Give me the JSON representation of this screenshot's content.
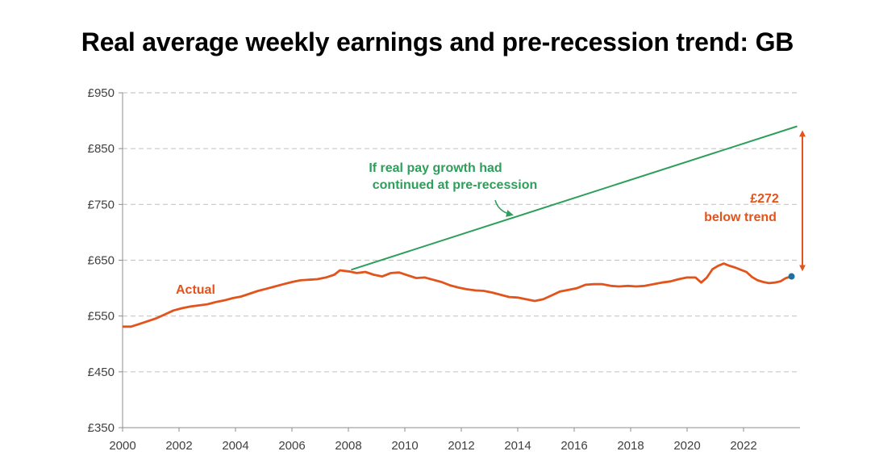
{
  "chart_data": {
    "type": "line",
    "title": "Real average weekly earnings and pre-recession trend: GB",
    "xlim": [
      2000,
      2024
    ],
    "ylim": [
      350,
      950
    ],
    "x_ticks": [
      2000,
      2002,
      2004,
      2006,
      2008,
      2010,
      2012,
      2014,
      2016,
      2018,
      2020,
      2022
    ],
    "x_tick_labels": [
      "2000",
      "2002",
      "2004",
      "2006",
      "2008",
      "2010",
      "2012",
      "2014",
      "2016",
      "2018",
      "2020",
      "2022"
    ],
    "y_ticks": [
      350,
      450,
      550,
      650,
      750,
      850,
      950
    ],
    "y_tick_labels": [
      "£350",
      "£450",
      "£550",
      "£650",
      "£750",
      "£850",
      "£950"
    ],
    "grid": true,
    "series": [
      {
        "name": "Actual",
        "color": "#E2541B",
        "points": [
          [
            2000.0,
            531
          ],
          [
            2000.3,
            531
          ],
          [
            2000.6,
            536
          ],
          [
            2000.9,
            541
          ],
          [
            2001.2,
            546
          ],
          [
            2001.5,
            553
          ],
          [
            2001.8,
            560
          ],
          [
            2002.1,
            564
          ],
          [
            2002.4,
            567
          ],
          [
            2002.7,
            569
          ],
          [
            2003.0,
            571
          ],
          [
            2003.3,
            575
          ],
          [
            2003.6,
            578
          ],
          [
            2003.9,
            582
          ],
          [
            2004.2,
            585
          ],
          [
            2004.5,
            590
          ],
          [
            2004.8,
            595
          ],
          [
            2005.1,
            599
          ],
          [
            2005.4,
            603
          ],
          [
            2005.7,
            607
          ],
          [
            2006.0,
            611
          ],
          [
            2006.3,
            614
          ],
          [
            2006.6,
            615
          ],
          [
            2006.9,
            616
          ],
          [
            2007.2,
            619
          ],
          [
            2007.5,
            624
          ],
          [
            2007.7,
            632
          ],
          [
            2008.0,
            630
          ],
          [
            2008.3,
            627
          ],
          [
            2008.6,
            629
          ],
          [
            2008.9,
            624
          ],
          [
            2009.2,
            621
          ],
          [
            2009.5,
            627
          ],
          [
            2009.8,
            628
          ],
          [
            2010.1,
            623
          ],
          [
            2010.4,
            618
          ],
          [
            2010.7,
            619
          ],
          [
            2011.0,
            615
          ],
          [
            2011.3,
            611
          ],
          [
            2011.6,
            605
          ],
          [
            2011.9,
            601
          ],
          [
            2012.2,
            598
          ],
          [
            2012.5,
            596
          ],
          [
            2012.8,
            595
          ],
          [
            2013.1,
            592
          ],
          [
            2013.4,
            588
          ],
          [
            2013.7,
            584
          ],
          [
            2014.0,
            583
          ],
          [
            2014.3,
            580
          ],
          [
            2014.6,
            577
          ],
          [
            2014.9,
            580
          ],
          [
            2015.2,
            587
          ],
          [
            2015.5,
            594
          ],
          [
            2015.8,
            597
          ],
          [
            2016.1,
            600
          ],
          [
            2016.4,
            606
          ],
          [
            2016.7,
            607
          ],
          [
            2017.0,
            607
          ],
          [
            2017.3,
            604
          ],
          [
            2017.6,
            603
          ],
          [
            2017.9,
            604
          ],
          [
            2018.2,
            603
          ],
          [
            2018.5,
            604
          ],
          [
            2018.8,
            607
          ],
          [
            2019.1,
            610
          ],
          [
            2019.4,
            612
          ],
          [
            2019.7,
            616
          ],
          [
            2020.0,
            619
          ],
          [
            2020.3,
            619
          ],
          [
            2020.5,
            610
          ],
          [
            2020.7,
            619
          ],
          [
            2020.9,
            634
          ],
          [
            2021.1,
            640
          ],
          [
            2021.3,
            644
          ],
          [
            2021.5,
            640
          ],
          [
            2021.7,
            637
          ],
          [
            2021.9,
            633
          ],
          [
            2022.1,
            629
          ],
          [
            2022.3,
            620
          ],
          [
            2022.5,
            614
          ],
          [
            2022.7,
            611
          ],
          [
            2022.9,
            609
          ],
          [
            2023.1,
            610
          ],
          [
            2023.3,
            612
          ],
          [
            2023.5,
            618
          ],
          [
            2023.7,
            621
          ]
        ]
      },
      {
        "color": "#2E9E5B",
        "points": [
          [
            2008.1,
            633
          ],
          [
            2023.9,
            890
          ]
        ]
      }
    ],
    "annotations": {
      "actual_label": "Actual",
      "trend_label_line1": "If real pay growth had",
      "trend_label_line2": "continued at pre-recession",
      "gap_value": "£272",
      "gap_text": "below trend",
      "end_marker": {
        "x": 2023.7,
        "y": 621,
        "color": "#1F6E9C"
      }
    },
    "colors": {
      "actual": "#E2541B",
      "trend": "#2E9E5B",
      "grid": "#c8c8c8",
      "axis": "#8c8c8c"
    }
  }
}
